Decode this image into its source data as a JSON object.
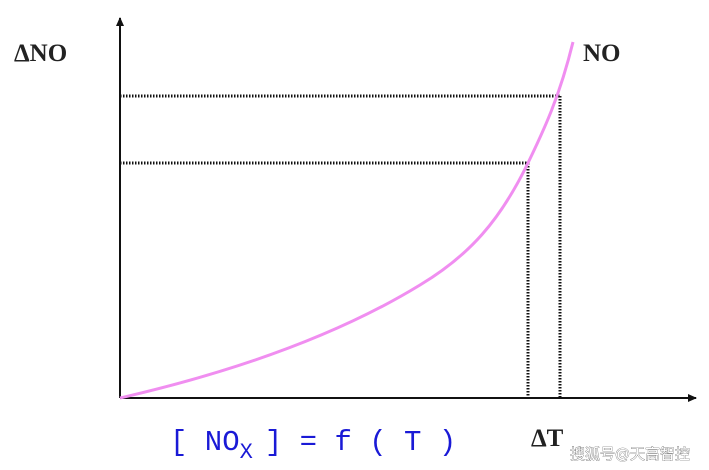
{
  "labels": {
    "y_axis": "ΔNO",
    "curve": "NO",
    "x_axis": "ΔT"
  },
  "formula": {
    "left": "[ NO",
    "subscript": "X",
    "right": "] = f ( T )"
  },
  "watermark": "搜狐号@天高智控"
}
